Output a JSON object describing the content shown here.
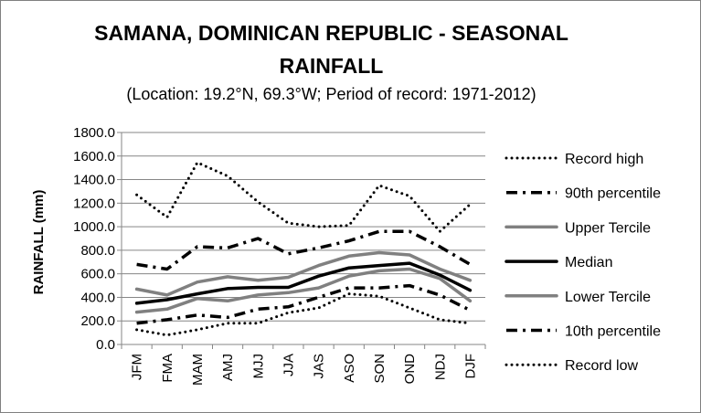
{
  "chart_data": {
    "type": "line",
    "title": "SAMANA, DOMINICAN REPUBLIC - SEASONAL RAINFALL",
    "title_lines": [
      "SAMANA, DOMINICAN REPUBLIC - SEASONAL",
      "RAINFALL"
    ],
    "subtitle": "(Location: 19.2°N, 69.3°W; Period of record: 1971-2012)",
    "xlabel": "",
    "ylabel": "RAINFALL (mm)",
    "ylim": [
      0,
      1800
    ],
    "y_ticks": [
      "0.0",
      "200.0",
      "400.0",
      "600.0",
      "800.0",
      "1000.0",
      "1200.0",
      "1400.0",
      "1600.0",
      "1800.0"
    ],
    "categories": [
      "JFM",
      "FMA",
      "MAM",
      "AMJ",
      "MJJ",
      "JJA",
      "JAS",
      "ASO",
      "SON",
      "OND",
      "NDJ",
      "DJF"
    ],
    "grid": "horizontal",
    "legend_position": "right",
    "series": [
      {
        "name": "Record high",
        "style": "dotted",
        "color": "#000000",
        "values": [
          1270,
          1080,
          1545,
          1430,
          1210,
          1030,
          1000,
          1010,
          1350,
          1260,
          960,
          1190
        ]
      },
      {
        "name": "90th percentile",
        "style": "dashdot",
        "color": "#000000",
        "values": [
          680,
          640,
          830,
          820,
          900,
          770,
          820,
          880,
          960,
          960,
          830,
          680
        ]
      },
      {
        "name": "Upper Tercile",
        "style": "solid",
        "color": "#808080",
        "values": [
          470,
          420,
          530,
          575,
          545,
          570,
          670,
          750,
          780,
          760,
          640,
          545
        ]
      },
      {
        "name": "Median",
        "style": "solid",
        "color": "#000000",
        "values": [
          350,
          380,
          430,
          475,
          485,
          485,
          580,
          650,
          670,
          690,
          590,
          460
        ]
      },
      {
        "name": "Lower Tercile",
        "style": "solid",
        "color": "#808080",
        "values": [
          275,
          300,
          390,
          370,
          420,
          440,
          480,
          580,
          625,
          640,
          560,
          370
        ]
      },
      {
        "name": "10th percentile",
        "style": "dashdot",
        "color": "#000000",
        "values": [
          180,
          210,
          250,
          230,
          300,
          320,
          400,
          480,
          480,
          500,
          420,
          290
        ]
      },
      {
        "name": "Record low",
        "style": "dotted",
        "color": "#000000",
        "values": [
          125,
          80,
          125,
          180,
          180,
          270,
          310,
          430,
          410,
          310,
          210,
          180
        ]
      }
    ]
  }
}
